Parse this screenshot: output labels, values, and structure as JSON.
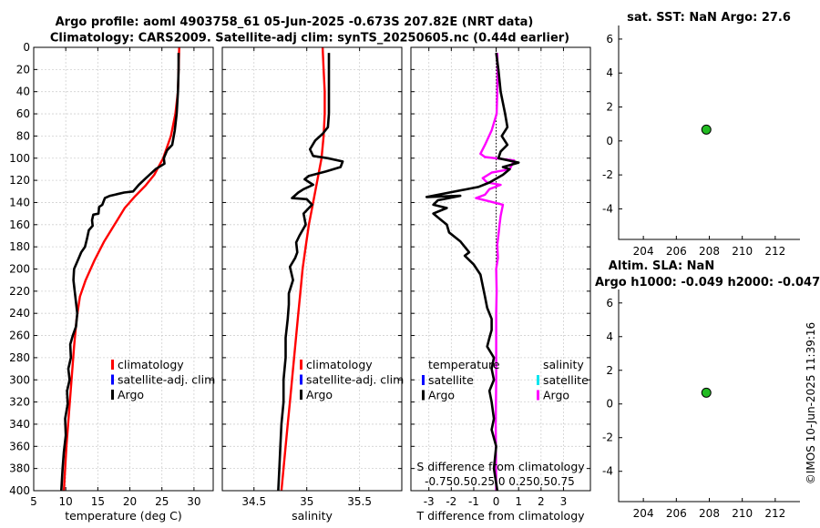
{
  "header": {
    "title_line1": "Argo profile: aoml 4903758_61 05-Jun-2025 -0.673S 207.82E (NRT data)",
    "title_line2": "Climatology: CARS2009. Satellite-adj clim: synTS_20250605.nc (0.44d earlier)"
  },
  "timestamp": "©IMOS 10-Jun-2025 11:39:16",
  "colors": {
    "red": "#ff0000",
    "blue": "#0000ff",
    "black": "#000000",
    "magenta": "#ff00ff",
    "cyan": "#00e5ee",
    "green": "#22bb22"
  },
  "chart_data": [
    {
      "id": "temperature",
      "type": "line",
      "xlabel": "temperature (deg C)",
      "ylabel": "",
      "xlim": [
        5,
        33
      ],
      "ylim": [
        400,
        0
      ],
      "xticks": [
        5,
        10,
        15,
        20,
        25,
        30
      ],
      "xticklabels": [
        "5",
        "10",
        "15",
        "20",
        "25",
        "30"
      ],
      "yticks": [
        0,
        20,
        40,
        60,
        80,
        100,
        120,
        140,
        160,
        180,
        200,
        220,
        240,
        260,
        280,
        300,
        320,
        340,
        360,
        380,
        400
      ],
      "yticklabels": [
        "0",
        "20",
        "40",
        "60",
        "80",
        "100",
        "120",
        "140",
        "160",
        "180",
        "200",
        "220",
        "240",
        "260",
        "280",
        "300",
        "320",
        "340",
        "360",
        "380",
        "400"
      ],
      "legend": [
        "climatology",
        "satellite-adj. clim",
        "Argo"
      ],
      "legend_colors": [
        "#ff0000",
        "#0000ff",
        "#000000"
      ],
      "series": [
        {
          "name": "climatology",
          "color": "#ff0000",
          "points": [
            [
              27.7,
              0
            ],
            [
              27.6,
              20
            ],
            [
              27.5,
              40
            ],
            [
              27.1,
              60
            ],
            [
              26.4,
              80
            ],
            [
              25.2,
              100
            ],
            [
              23.8,
              115
            ],
            [
              22.4,
              125
            ],
            [
              20.7,
              135
            ],
            [
              19.2,
              145
            ],
            [
              17.6,
              160
            ],
            [
              16,
              175
            ],
            [
              14.5,
              192
            ],
            [
              13.1,
              210
            ],
            [
              12.2,
              225
            ],
            [
              11.7,
              245
            ],
            [
              11.3,
              270
            ],
            [
              10.9,
              300
            ],
            [
              10.5,
              330
            ],
            [
              10.1,
              360
            ],
            [
              9.7,
              400
            ]
          ]
        },
        {
          "name": "Argo",
          "color": "#000000",
          "points": [
            [
              27.6,
              5
            ],
            [
              27.6,
              20
            ],
            [
              27.5,
              40
            ],
            [
              27.3,
              60
            ],
            [
              27,
              75
            ],
            [
              26.6,
              88
            ],
            [
              25.8,
              93
            ],
            [
              25.3,
              100
            ],
            [
              25.4,
              105
            ],
            [
              24,
              110
            ],
            [
              22.5,
              118
            ],
            [
              21.4,
              124
            ],
            [
              20.5,
              130
            ],
            [
              19.1,
              131
            ],
            [
              16.9,
              134
            ],
            [
              16.1,
              136
            ],
            [
              15.7,
              142
            ],
            [
              15.2,
              144
            ],
            [
              15.1,
              150
            ],
            [
              14.3,
              151
            ],
            [
              14.1,
              156
            ],
            [
              14.2,
              161
            ],
            [
              13.6,
              165
            ],
            [
              13.3,
              173
            ],
            [
              13,
              180
            ],
            [
              12.4,
              185
            ],
            [
              11.9,
              192
            ],
            [
              11.3,
              200
            ],
            [
              11.2,
              210
            ],
            [
              11.4,
              220
            ],
            [
              11.6,
              230
            ],
            [
              11.8,
              240
            ],
            [
              11.6,
              252
            ],
            [
              11.1,
              260
            ],
            [
              10.7,
              268
            ],
            [
              10.8,
              280
            ],
            [
              10.4,
              290
            ],
            [
              10.6,
              300
            ],
            [
              10.2,
              310
            ],
            [
              10.3,
              322
            ],
            [
              9.9,
              335
            ],
            [
              10,
              350
            ],
            [
              9.7,
              365
            ],
            [
              9.5,
              380
            ],
            [
              9.3,
              400
            ]
          ]
        }
      ]
    },
    {
      "id": "salinity",
      "type": "line",
      "xlabel": "salinity",
      "ylabel": "",
      "xlim": [
        34.2,
        35.9
      ],
      "ylim": [
        400,
        0
      ],
      "xticks": [
        34.5,
        35,
        35.5
      ],
      "xticklabels": [
        "34.5",
        "35",
        "35.5"
      ],
      "yticks": [
        0,
        20,
        40,
        60,
        80,
        100,
        120,
        140,
        160,
        180,
        200,
        220,
        240,
        260,
        280,
        300,
        320,
        340,
        360,
        380,
        400
      ],
      "legend": [
        "climatology",
        "satellite-adj. clim",
        "Argo"
      ],
      "legend_colors": [
        "#ff0000",
        "#0000ff",
        "#000000"
      ],
      "series": [
        {
          "name": "climatology",
          "color": "#ff0000",
          "points": [
            [
              35.15,
              0
            ],
            [
              35.16,
              20
            ],
            [
              35.17,
              40
            ],
            [
              35.17,
              60
            ],
            [
              35.16,
              80
            ],
            [
              35.14,
              100
            ],
            [
              35.1,
              120
            ],
            [
              35.06,
              140
            ],
            [
              35.02,
              160
            ],
            [
              34.99,
              180
            ],
            [
              34.96,
              200
            ],
            [
              34.94,
              220
            ],
            [
              34.92,
              240
            ],
            [
              34.9,
              260
            ],
            [
              34.88,
              280
            ],
            [
              34.86,
              300
            ],
            [
              34.84,
              320
            ],
            [
              34.82,
              340
            ],
            [
              34.8,
              360
            ],
            [
              34.78,
              380
            ],
            [
              34.76,
              400
            ]
          ]
        },
        {
          "name": "Argo",
          "color": "#000000",
          "points": [
            [
              35.21,
              5
            ],
            [
              35.21,
              20
            ],
            [
              35.21,
              40
            ],
            [
              35.21,
              60
            ],
            [
              35.2,
              72
            ],
            [
              35.15,
              78
            ],
            [
              35.08,
              84
            ],
            [
              35.03,
              92
            ],
            [
              35.06,
              98
            ],
            [
              35.2,
              100
            ],
            [
              35.34,
              103
            ],
            [
              35.32,
              108
            ],
            [
              35.18,
              112
            ],
            [
              35.02,
              116
            ],
            [
              34.98,
              119
            ],
            [
              35.06,
              124
            ],
            [
              34.97,
              128
            ],
            [
              34.92,
              131
            ],
            [
              34.86,
              136
            ],
            [
              35,
              137
            ],
            [
              35.05,
              142
            ],
            [
              34.97,
              150
            ],
            [
              34.99,
              160
            ],
            [
              34.93,
              170
            ],
            [
              34.9,
              176
            ],
            [
              34.91,
              185
            ],
            [
              34.89,
              190
            ],
            [
              34.84,
              198
            ],
            [
              34.87,
              210
            ],
            [
              34.83,
              222
            ],
            [
              34.83,
              232
            ],
            [
              34.82,
              245
            ],
            [
              34.8,
              262
            ],
            [
              34.8,
              280
            ],
            [
              34.78,
              300
            ],
            [
              34.78,
              320
            ],
            [
              34.76,
              340
            ],
            [
              34.75,
              360
            ],
            [
              34.74,
              380
            ],
            [
              34.73,
              400
            ]
          ]
        }
      ]
    },
    {
      "id": "difference",
      "type": "line",
      "xlabel": "T difference from climatology",
      "ylabel": "",
      "xlim": [
        -3.8,
        4.2
      ],
      "ylim": [
        400,
        0
      ],
      "xticks": [
        -3,
        -2,
        -1,
        0,
        1,
        2,
        3
      ],
      "xticklabels": [
        "-3",
        "-2",
        "-1",
        "0",
        "1",
        "2",
        "3"
      ],
      "top_axis_label": "S difference from climatology",
      "top_axis_ticklabels": "-0.75 0.5 0.25 0 0.25 0.5 0.75",
      "top_axis_ticklabels_display": "-0.750.50.25 0 0.250.50.75",
      "yticks": [
        0,
        20,
        40,
        60,
        80,
        100,
        120,
        140,
        160,
        180,
        200,
        220,
        240,
        260,
        280,
        300,
        320,
        340,
        360,
        380,
        400
      ],
      "legend_left_title": "temperature",
      "legend_right_title": "salinity",
      "legend_left": [
        "satellite",
        "Argo"
      ],
      "legend_left_colors": [
        "#0000ff",
        "#000000"
      ],
      "legend_right": [
        "satellite",
        "Argo"
      ],
      "legend_right_colors": [
        "#00e5ee",
        "#ff00ff"
      ],
      "series": [
        {
          "name": "salinity Argo",
          "color": "#ff00ff",
          "points": [
            [
              0.05,
              5
            ],
            [
              0.06,
              20
            ],
            [
              0.05,
              40
            ],
            [
              0.02,
              60
            ],
            [
              -0.2,
              75
            ],
            [
              -0.5,
              88
            ],
            [
              -0.7,
              96
            ],
            [
              -0.5,
              99
            ],
            [
              0.8,
              102
            ],
            [
              0.6,
              110
            ],
            [
              -0.2,
              113
            ],
            [
              -0.6,
              118
            ],
            [
              -0.4,
              122
            ],
            [
              0.2,
              124
            ],
            [
              -0.3,
              128
            ],
            [
              -0.5,
              133
            ],
            [
              -0.9,
              136
            ],
            [
              -0.3,
              139
            ],
            [
              0.3,
              142
            ],
            [
              0.2,
              152
            ],
            [
              0.15,
              160
            ],
            [
              0.1,
              170
            ],
            [
              0.05,
              178
            ],
            [
              0.08,
              190
            ],
            [
              0,
              200
            ],
            [
              0.02,
              220
            ],
            [
              0,
              240
            ],
            [
              0,
              260
            ],
            [
              0,
              300
            ],
            [
              -0.02,
              340
            ],
            [
              0,
              400
            ]
          ]
        },
        {
          "name": "temperature Argo",
          "color": "#000000",
          "points": [
            [
              0,
              5
            ],
            [
              0.1,
              20
            ],
            [
              0.2,
              40
            ],
            [
              0.4,
              60
            ],
            [
              0.5,
              72
            ],
            [
              0.25,
              80
            ],
            [
              0.5,
              88
            ],
            [
              0.2,
              94
            ],
            [
              0.1,
              100
            ],
            [
              1,
              104
            ],
            [
              0.3,
              108
            ],
            [
              0.6,
              110
            ],
            [
              0.3,
              115
            ],
            [
              -0.3,
              122
            ],
            [
              -0.8,
              126
            ],
            [
              -3.1,
              135
            ],
            [
              -1.6,
              134
            ],
            [
              -2.6,
              138
            ],
            [
              -2.8,
              142
            ],
            [
              -2.2,
              145
            ],
            [
              -2.8,
              150
            ],
            [
              -2.5,
              155
            ],
            [
              -2.2,
              160
            ],
            [
              -2.1,
              167
            ],
            [
              -1.6,
              175
            ],
            [
              -1.2,
              185
            ],
            [
              -1.4,
              188
            ],
            [
              -1,
              196
            ],
            [
              -0.7,
              205
            ],
            [
              -0.6,
              215
            ],
            [
              -0.5,
              225
            ],
            [
              -0.4,
              235
            ],
            [
              -0.2,
              245
            ],
            [
              -0.2,
              255
            ],
            [
              -0.3,
              262
            ],
            [
              -0.4,
              270
            ],
            [
              -0.1,
              280
            ],
            [
              -0.2,
              290
            ],
            [
              -0.1,
              300
            ],
            [
              -0.3,
              310
            ],
            [
              -0.2,
              320
            ],
            [
              -0.1,
              335
            ],
            [
              -0.2,
              345
            ],
            [
              0,
              360
            ],
            [
              -0.1,
              380
            ],
            [
              0.05,
              400
            ]
          ]
        }
      ]
    },
    {
      "id": "sst_panel",
      "type": "scatter",
      "title": "sat. SST: NaN Argo: 27.6",
      "xlabel": "",
      "ylabel": "",
      "xlim": [
        202.5,
        213.5
      ],
      "ylim": [
        -5.8,
        6.8
      ],
      "xticks": [
        204,
        206,
        208,
        210,
        212
      ],
      "xticklabels": [
        "204",
        "206",
        "208",
        "210",
        "212"
      ],
      "yticks": [
        -4,
        -2,
        0,
        2,
        4,
        6
      ],
      "yticklabels": [
        "-4",
        "-2",
        "0",
        "2",
        "4",
        "6"
      ],
      "points": [
        [
          207.82,
          0.67
        ]
      ],
      "marker_color": "#22bb22"
    },
    {
      "id": "sla_panel",
      "type": "scatter",
      "title": "Altim. SLA: NaN",
      "subtitle": "Argo h1000: -0.049 h2000: -0.047",
      "xlabel": "",
      "ylabel": "",
      "xlim": [
        202.5,
        213.5
      ],
      "ylim": [
        -5.8,
        6.8
      ],
      "xticks": [
        204,
        206,
        208,
        210,
        212
      ],
      "xticklabels": [
        "204",
        "206",
        "208",
        "210",
        "212"
      ],
      "yticks": [
        -4,
        -2,
        0,
        2,
        4,
        6
      ],
      "yticklabels": [
        "-4",
        "-2",
        "0",
        "2",
        "4",
        "6"
      ],
      "points": [
        [
          207.82,
          0.67
        ]
      ],
      "marker_color": "#22bb22"
    }
  ]
}
